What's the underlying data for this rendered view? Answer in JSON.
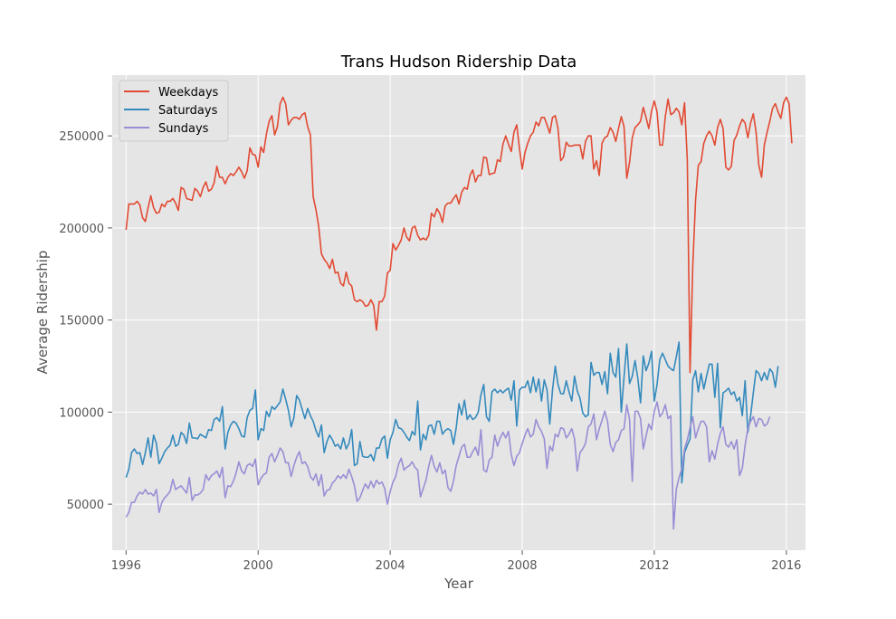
{
  "chart_data": {
    "type": "line",
    "title": "Trans Hudson Ridership Data",
    "xlabel": "Year",
    "ylabel": "Average Ridership",
    "xlim": [
      1995.58,
      2016.58
    ],
    "ylim": [
      25000,
      283000
    ],
    "x_ticks": [
      1996,
      2000,
      2004,
      2008,
      2012,
      2016
    ],
    "x_tick_labels": [
      "1996",
      "2000",
      "2004",
      "2008",
      "2012",
      "2016"
    ],
    "y_ticks": [
      50000,
      100000,
      150000,
      200000,
      250000
    ],
    "y_tick_labels": [
      "50000",
      "100000",
      "150000",
      "200000",
      "250000"
    ],
    "grid": true,
    "legend_position": "top-left",
    "x_start": 1996.0,
    "x_step": 0.083333,
    "series": [
      {
        "name": "Weekdays",
        "color": "#E24A33",
        "values": [
          199000,
          213000,
          213000,
          213000,
          214500,
          212500,
          205500,
          203500,
          211000,
          217500,
          211000,
          208000,
          208500,
          213000,
          211500,
          214500,
          214500,
          216000,
          213500,
          209500,
          222000,
          221000,
          216000,
          215500,
          215000,
          221500,
          220000,
          217000,
          222000,
          225000,
          220000,
          221000,
          224500,
          233500,
          227500,
          227500,
          224000,
          227500,
          229500,
          228500,
          230500,
          233000,
          230500,
          227000,
          231000,
          243500,
          240000,
          239500,
          233000,
          244000,
          241000,
          251000,
          258000,
          261000,
          250500,
          255000,
          267500,
          271000,
          267500,
          256000,
          258500,
          260000,
          260000,
          259000,
          261500,
          262500,
          255000,
          250500,
          217000,
          210000,
          201000,
          186000,
          183000,
          181000,
          178000,
          183000,
          175500,
          176000,
          170000,
          168500,
          176000,
          170000,
          168500,
          161000,
          160000,
          161000,
          160000,
          157500,
          158000,
          161000,
          158000,
          144500,
          160000,
          160000,
          163000,
          175500,
          177000,
          191500,
          188000,
          190500,
          193500,
          200000,
          195000,
          193000,
          200000,
          201000,
          196000,
          193500,
          194500,
          193500,
          196000,
          208000,
          206000,
          210500,
          208000,
          203000,
          212000,
          213500,
          213500,
          216000,
          218000,
          213000,
          219500,
          222000,
          221000,
          228500,
          231500,
          225000,
          228500,
          228500,
          238500,
          238000,
          229000,
          229500,
          230000,
          237000,
          236000,
          245500,
          250000,
          245500,
          241500,
          252000,
          256000,
          243000,
          232000,
          241000,
          246000,
          250000,
          252000,
          257500,
          255500,
          260000,
          260000,
          256000,
          251500,
          260000,
          261000,
          254000,
          236500,
          238500,
          246500,
          244500,
          244500,
          245000,
          245000,
          245000,
          237500,
          247000,
          250000,
          250000,
          232000,
          236500,
          228500,
          246000,
          249000,
          250000,
          254500,
          252000,
          247000,
          254000,
          260500,
          255000,
          227000,
          235500,
          249000,
          254500,
          256000,
          258000,
          265500,
          260000,
          254000,
          263500,
          269000,
          263000,
          245000,
          245000,
          260500,
          270000,
          261500,
          262500,
          265000,
          263000,
          256000,
          268000,
          237000,
          121500,
          180000,
          215000,
          234000,
          236000,
          246000,
          250000,
          252500,
          250000,
          245000,
          254500,
          259000,
          254000,
          233000,
          231500,
          233500,
          247500,
          250500,
          255500,
          259000,
          257000,
          249000,
          257000,
          262000,
          252000,
          234000,
          227500,
          245000,
          252000,
          258000,
          265000,
          267500,
          263000,
          259500,
          268000,
          271000,
          267500,
          246000
        ]
      },
      {
        "name": "Saturdays",
        "color": "#348ABD",
        "values": [
          64500,
          69000,
          78000,
          80000,
          77500,
          78000,
          71500,
          78000,
          86000,
          75500,
          87500,
          83000,
          72000,
          75000,
          78500,
          80500,
          82000,
          87500,
          81500,
          82500,
          89000,
          87500,
          83000,
          94000,
          86000,
          86000,
          85500,
          88000,
          87000,
          86000,
          90500,
          90000,
          96000,
          97000,
          95000,
          103000,
          80000,
          89000,
          93000,
          95000,
          94000,
          91000,
          87000,
          86500,
          97000,
          101000,
          102000,
          112000,
          85000,
          91000,
          90000,
          100500,
          97500,
          103000,
          101500,
          103500,
          105500,
          112500,
          107000,
          101000,
          92000,
          97000,
          109000,
          106500,
          101500,
          96500,
          102000,
          98000,
          95000,
          90000,
          86500,
          93000,
          78000,
          84000,
          87500,
          85000,
          81500,
          82500,
          80000,
          86000,
          80000,
          83000,
          90500,
          71000,
          72000,
          84000,
          76000,
          75500,
          75500,
          77000,
          73500,
          80500,
          80500,
          85500,
          87000,
          75000,
          85000,
          89000,
          96000,
          91500,
          91000,
          89000,
          86500,
          84500,
          89500,
          87500,
          106000,
          79500,
          88000,
          85000,
          92500,
          93000,
          88000,
          95000,
          95000,
          88000,
          90000,
          91000,
          90000,
          82500,
          91500,
          104500,
          98500,
          106500,
          96000,
          98500,
          96000,
          97000,
          100000,
          109500,
          115000,
          97500,
          95000,
          111000,
          112500,
          110500,
          112000,
          110500,
          112000,
          113000,
          106500,
          117000,
          92500,
          112000,
          113500,
          113500,
          117000,
          110500,
          119000,
          111000,
          118000,
          106000,
          117500,
          112000,
          93500,
          112000,
          125000,
          115000,
          110000,
          110000,
          117000,
          111000,
          106000,
          119500,
          111500,
          107500,
          99500,
          97500,
          98500,
          127000,
          120000,
          121500,
          121500,
          115000,
          122000,
          110000,
          132000,
          121500,
          119000,
          134500,
          100000,
          119000,
          137000,
          115500,
          119500,
          128000,
          118500,
          105000,
          130500,
          122500,
          126500,
          133000,
          106000,
          115000,
          128500,
          132000,
          128500,
          125000,
          123500,
          122500,
          130000,
          138000,
          61500,
          78000,
          82000,
          85500,
          117500,
          122500,
          111000,
          121000,
          112500,
          119500,
          126000,
          126000,
          108000,
          126500,
          91500,
          110500,
          111500,
          113000,
          109500,
          111000,
          106000,
          108000,
          98000,
          117000,
          89000,
          98000,
          110500,
          122500,
          121000,
          117000,
          121500,
          117500,
          123500,
          121500,
          113500,
          125000
        ]
      },
      {
        "name": "Sundays",
        "color": "#988ED5",
        "values": [
          43000,
          45500,
          51000,
          51000,
          54500,
          56500,
          55500,
          58000,
          55500,
          56000,
          54500,
          58000,
          45500,
          51000,
          53500,
          55000,
          57000,
          63500,
          58000,
          59000,
          60000,
          58000,
          56000,
          64500,
          52000,
          55000,
          55000,
          56000,
          58000,
          66000,
          63000,
          65500,
          66500,
          68000,
          64500,
          70000,
          53500,
          60000,
          59500,
          62500,
          67000,
          73000,
          68000,
          66500,
          71000,
          72000,
          70500,
          74500,
          60500,
          64000,
          66000,
          67000,
          75500,
          77500,
          73000,
          76500,
          80500,
          78500,
          72500,
          72500,
          65000,
          71000,
          75500,
          78500,
          72000,
          73000,
          70500,
          65000,
          63000,
          66500,
          60000,
          66000,
          54500,
          57500,
          58000,
          61500,
          63000,
          65500,
          64000,
          66000,
          64000,
          69000,
          65000,
          60000,
          51500,
          53500,
          57500,
          61000,
          58500,
          62500,
          59000,
          63000,
          61000,
          62000,
          58500,
          50000,
          57000,
          62000,
          65000,
          71500,
          75000,
          68500,
          70000,
          71000,
          73000,
          70000,
          68500,
          54000,
          58500,
          63000,
          70500,
          76500,
          70500,
          67500,
          72500,
          66500,
          68500,
          59000,
          57000,
          62500,
          71000,
          76000,
          81000,
          82500,
          75500,
          75500,
          78500,
          81000,
          76500,
          90500,
          68500,
          67500,
          74000,
          75500,
          87500,
          81500,
          86000,
          89000,
          86000,
          89500,
          77000,
          71000,
          76000,
          78000,
          83000,
          87500,
          91000,
          86500,
          88000,
          96000,
          92000,
          89500,
          85500,
          69500,
          81500,
          79000,
          88000,
          86500,
          91500,
          91000,
          86000,
          88000,
          91000,
          85500,
          68000,
          78000,
          80000,
          83000,
          92000,
          93500,
          99000,
          85000,
          91000,
          95500,
          100500,
          95000,
          82500,
          78500,
          83500,
          85000,
          90000,
          91000,
          104000,
          96000,
          62500,
          100500,
          100500,
          96500,
          80000,
          87000,
          93500,
          90500,
          100500,
          105500,
          97500,
          99500,
          104000,
          96500,
          98000,
          36500,
          58000,
          64500,
          69000,
          80000,
          85000,
          91500,
          97500,
          86000,
          91000,
          95000,
          95000,
          92000,
          73000,
          79000,
          74500,
          82500,
          88500,
          92000,
          82500,
          81000,
          84000,
          80000,
          85000,
          65500,
          69500,
          82000,
          91000,
          95000,
          97500,
          92000,
          96500,
          96000,
          92500,
          93500,
          97500
        ]
      }
    ]
  }
}
